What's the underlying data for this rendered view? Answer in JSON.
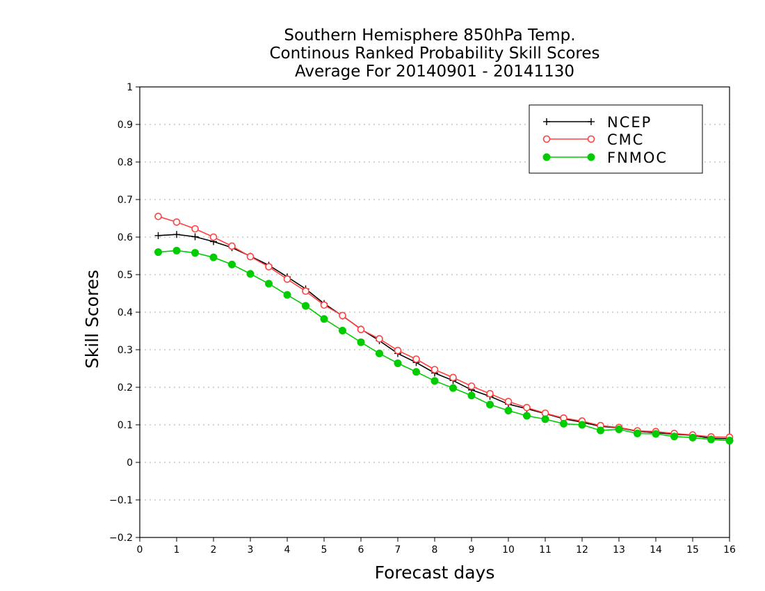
{
  "chart_data": {
    "type": "line",
    "title": [
      "Southern Hemisphere 850hPa Temp.",
      "Continous Ranked Probability Skill Scores",
      "Average For 20140901 - 20141130"
    ],
    "xlabel": "Forecast days",
    "ylabel": "Skill Scores",
    "xlim": [
      0,
      16
    ],
    "ylim": [
      -0.2,
      1
    ],
    "xticks": [
      0,
      1,
      2,
      3,
      4,
      5,
      6,
      7,
      8,
      9,
      10,
      11,
      12,
      13,
      14,
      15,
      16
    ],
    "yticks": [
      -0.2,
      -0.1,
      0,
      0.1,
      0.2,
      0.3,
      0.4,
      0.5,
      0.6,
      0.7,
      0.8,
      0.9,
      1
    ],
    "ytick_labels": [
      "−0.2",
      "−0.1",
      "0",
      "0.1",
      "0.2",
      "0.3",
      "0.4",
      "0.5",
      "0.6",
      "0.7",
      "0.8",
      "0.9",
      "1"
    ],
    "grid": "horizontal dotted",
    "legend_position": "top-right",
    "x": [
      0.5,
      1,
      1.5,
      2,
      2.5,
      3,
      3.5,
      4,
      4.5,
      5,
      5.5,
      6,
      6.5,
      7,
      7.5,
      8,
      8.5,
      9,
      9.5,
      10,
      10.5,
      11,
      11.5,
      12,
      12.5,
      13,
      13.5,
      14,
      14.5,
      15,
      15.5,
      16
    ],
    "series": [
      {
        "name": "NCEP",
        "color": "#000000",
        "marker": "plus",
        "values": [
          0.604,
          0.607,
          0.601,
          0.588,
          0.572,
          0.549,
          0.525,
          0.494,
          0.462,
          0.423,
          0.39,
          0.355,
          0.324,
          0.29,
          0.266,
          0.238,
          0.218,
          0.193,
          0.176,
          0.155,
          0.143,
          0.13,
          0.116,
          0.107,
          0.096,
          0.092,
          0.083,
          0.079,
          0.075,
          0.072,
          0.064,
          0.063
        ]
      },
      {
        "name": "CMC",
        "color": "#ff4040",
        "marker": "open-circle",
        "values": [
          0.655,
          0.64,
          0.622,
          0.6,
          0.576,
          0.548,
          0.521,
          0.488,
          0.456,
          0.419,
          0.391,
          0.354,
          0.329,
          0.298,
          0.275,
          0.247,
          0.226,
          0.203,
          0.183,
          0.162,
          0.146,
          0.131,
          0.118,
          0.11,
          0.098,
          0.093,
          0.084,
          0.082,
          0.077,
          0.073,
          0.068,
          0.067
        ]
      },
      {
        "name": "FNMOC",
        "color": "#00cc00",
        "marker": "filled-circle",
        "values": [
          0.56,
          0.564,
          0.558,
          0.546,
          0.527,
          0.502,
          0.476,
          0.446,
          0.417,
          0.382,
          0.351,
          0.32,
          0.29,
          0.264,
          0.241,
          0.217,
          0.198,
          0.178,
          0.154,
          0.138,
          0.124,
          0.115,
          0.103,
          0.1,
          0.085,
          0.088,
          0.077,
          0.076,
          0.069,
          0.066,
          0.061,
          0.058
        ]
      }
    ]
  }
}
